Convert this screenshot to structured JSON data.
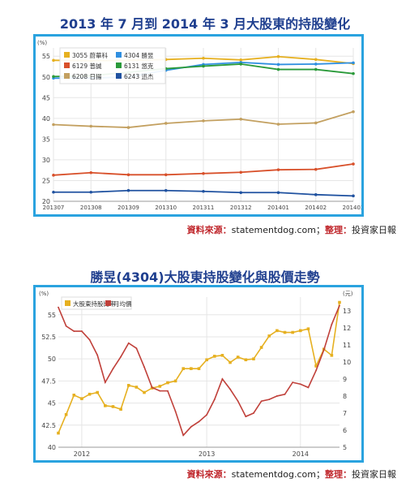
{
  "chart1_title": "2013 年 7 月到 2014 年 3 月大股東的持股變化",
  "chart2_title": "勝昱(4304)大股東持股變化與股價走勢",
  "source": {
    "label": "資料來源：",
    "site": "statementdog.com",
    "sep": "；",
    "org_label": "整理：",
    "org": "投資家日報"
  },
  "chart_data": [
    {
      "type": "line",
      "unit_label": "(%)",
      "x": [
        "201307",
        "201308",
        "201309",
        "201310",
        "201311",
        "201312",
        "201401",
        "201402",
        "201403"
      ],
      "ylim": [
        20,
        57
      ],
      "yticks": [
        20,
        25,
        30,
        35,
        40,
        45,
        50,
        55
      ],
      "grid": true,
      "legend_position": "top-left",
      "series": [
        {
          "name": "3055 蔚華科",
          "color": "#e6b020",
          "values": [
            54.0,
            53.9,
            54.0,
            54.2,
            54.5,
            54.1,
            54.9,
            54.2,
            53.2
          ]
        },
        {
          "name": "4304 勝昱",
          "color": "#2f8fe0",
          "values": [
            49.7,
            49.7,
            50.0,
            51.6,
            53.0,
            53.5,
            53.0,
            53.1,
            53.4
          ]
        },
        {
          "name": "6129 普誠",
          "color": "#d8502a",
          "values": [
            26.3,
            26.9,
            26.4,
            26.4,
            26.7,
            27.0,
            27.6,
            27.7,
            29.0
          ]
        },
        {
          "name": "6131 悠克",
          "color": "#2a9a3a",
          "values": [
            50.1,
            50.3,
            51.1,
            52.0,
            52.6,
            53.1,
            51.8,
            51.8,
            50.8
          ]
        },
        {
          "name": "6208 日揚",
          "color": "#c3a060",
          "values": [
            38.5,
            38.1,
            37.8,
            38.8,
            39.4,
            39.8,
            38.6,
            38.9,
            41.6
          ]
        },
        {
          "name": "6243 迅杰",
          "color": "#2052a0",
          "values": [
            22.2,
            22.2,
            22.6,
            22.6,
            22.4,
            22.1,
            22.1,
            21.6,
            21.3
          ]
        }
      ]
    },
    {
      "type": "line",
      "left_unit_label": "(%)",
      "right_unit_label": "(元)",
      "x_ticks": [
        "2012",
        "2013",
        "2014"
      ],
      "y_left_lim": [
        40,
        57
      ],
      "y_left_ticks": [
        40,
        42.5,
        45,
        47.5,
        50,
        52.5,
        55
      ],
      "y_right_lim": [
        5,
        13.8
      ],
      "y_right_ticks": [
        5,
        6,
        7,
        8,
        9,
        10,
        11,
        12,
        13
      ],
      "grid": true,
      "legend_position": "top-left",
      "series": [
        {
          "name": "大股東持股比率",
          "axis": "left",
          "color": "#e6b020",
          "values": [
            41.6,
            43.7,
            45.9,
            45.5,
            46.0,
            46.2,
            44.7,
            44.6,
            44.3,
            47.0,
            46.8,
            46.2,
            46.7,
            46.9,
            47.3,
            47.5,
            48.9,
            48.9,
            48.9,
            49.9,
            50.3,
            50.4,
            49.6,
            50.2,
            49.9,
            50.0,
            51.3,
            52.6,
            53.2,
            53.0,
            53.0,
            53.2,
            53.4,
            49.2,
            51.1,
            50.4,
            56.4
          ]
        },
        {
          "name": "月均價",
          "axis": "right",
          "color": "#c0403a",
          "values": [
            13.2,
            12.1,
            11.8,
            11.8,
            11.3,
            10.4,
            8.8,
            9.6,
            10.3,
            11.1,
            10.8,
            9.7,
            8.5,
            8.3,
            8.3,
            7.1,
            5.7,
            6.2,
            6.5,
            6.9,
            7.8,
            9.0,
            8.4,
            7.7,
            6.8,
            7.0,
            7.7,
            7.8,
            8.0,
            8.1,
            8.8,
            8.7,
            8.5,
            9.5,
            10.7,
            12.2,
            13.3
          ]
        }
      ]
    }
  ]
}
